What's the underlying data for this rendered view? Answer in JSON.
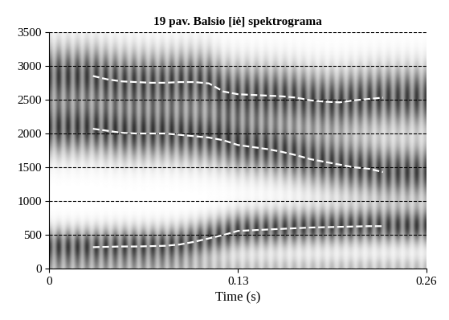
{
  "chart_data": {
    "type": "line",
    "title": "19 pav. Balsio [iė] spektrograma",
    "x_label": "Time (s)",
    "x": [
      0.03,
      0.04,
      0.05,
      0.06,
      0.07,
      0.08,
      0.09,
      0.1,
      0.11,
      0.12,
      0.13,
      0.14,
      0.15,
      0.16,
      0.17,
      0.18,
      0.19,
      0.2,
      0.21,
      0.22,
      0.23
    ],
    "series": [
      {
        "color": "#ffffff",
        "line_style": "dashed",
        "values": [
          320,
          325,
          330,
          330,
          335,
          340,
          360,
          400,
          450,
          500,
          560,
          570,
          580,
          590,
          600,
          610,
          615,
          620,
          625,
          630,
          630
        ]
      },
      {
        "color": "#ffffff",
        "line_style": "dashed",
        "values": [
          2070,
          2040,
          2010,
          2000,
          2000,
          2000,
          1980,
          1960,
          1940,
          1900,
          1830,
          1800,
          1770,
          1730,
          1680,
          1620,
          1580,
          1540,
          1500,
          1480,
          1430
        ]
      },
      {
        "color": "#ffffff",
        "line_style": "dashed",
        "values": [
          2850,
          2800,
          2770,
          2760,
          2750,
          2750,
          2760,
          2760,
          2740,
          2620,
          2580,
          2570,
          2560,
          2550,
          2530,
          2490,
          2470,
          2460,
          2490,
          2510,
          2530
        ]
      }
    ],
    "xlim": [
      0,
      0.26
    ],
    "xticks": [
      0,
      0.13,
      0.26
    ],
    "ylim": [
      0,
      3500
    ],
    "yticks": [
      0,
      500,
      1000,
      1500,
      2000,
      2500,
      3000,
      3500
    ],
    "grid": true
  }
}
